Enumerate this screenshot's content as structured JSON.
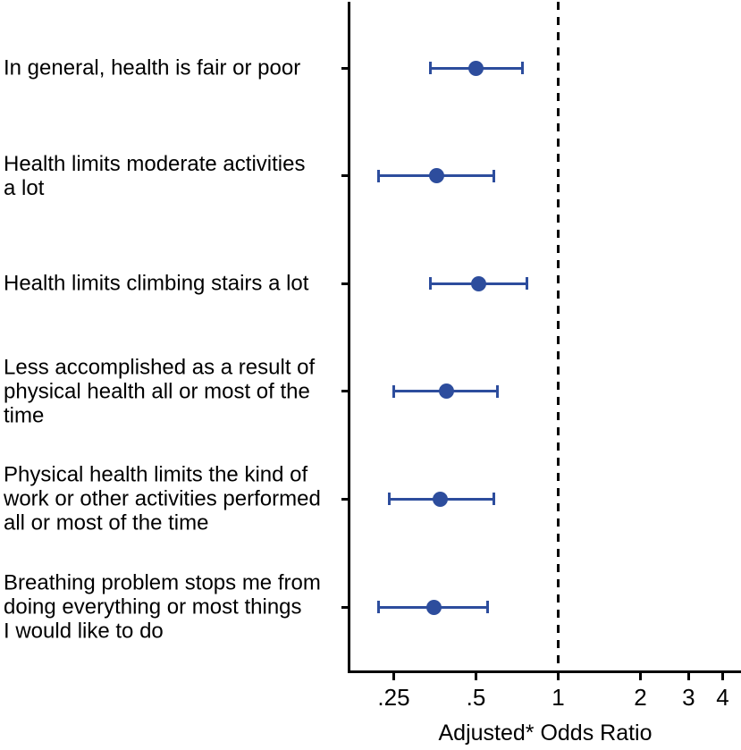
{
  "chart_data": {
    "type": "scatter",
    "subtype": "forest-plot",
    "title": "",
    "xlabel": "Adjusted* Odds Ratio",
    "ylabel": "",
    "x_scale": "log",
    "x_range": [
      0.17,
      4.67
    ],
    "x_ticks": [
      0.25,
      0.5,
      1,
      2,
      3,
      4
    ],
    "x_tick_labels": [
      ".25",
      ".5",
      "1",
      "2",
      "3",
      "4"
    ],
    "reference_line": 1,
    "grid": false,
    "legend": "none",
    "marker_color": "#2d4d9d",
    "axis_color": "#000000",
    "items": [
      {
        "label_lines": [
          "In general, health is fair or poor"
        ],
        "or": 0.5,
        "ci_low": 0.34,
        "ci_high": 0.74
      },
      {
        "label_lines": [
          "Health limits moderate activities",
          "a lot"
        ],
        "or": 0.36,
        "ci_low": 0.22,
        "ci_high": 0.58
      },
      {
        "label_lines": [
          "Health limits climbing stairs a lot"
        ],
        "or": 0.51,
        "ci_low": 0.34,
        "ci_high": 0.77
      },
      {
        "label_lines": [
          "Less accomplished as a result of",
          "physical health all or most of the",
          "time"
        ],
        "or": 0.39,
        "ci_low": 0.25,
        "ci_high": 0.6
      },
      {
        "label_lines": [
          "Physical health limits the kind of",
          "work or other activities performed",
          "all or most of the time"
        ],
        "or": 0.37,
        "ci_low": 0.24,
        "ci_high": 0.58
      },
      {
        "label_lines": [
          "Breathing problem stops me from",
          "doing everything or most things",
          "I would like to do"
        ],
        "or": 0.35,
        "ci_low": 0.22,
        "ci_high": 0.55
      }
    ]
  }
}
